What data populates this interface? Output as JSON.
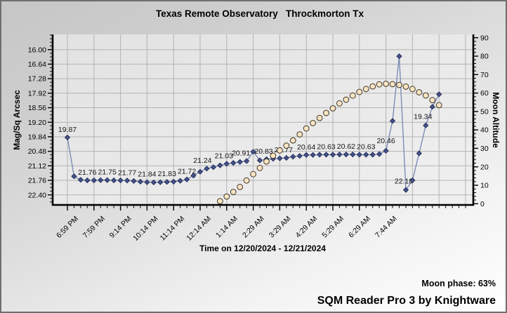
{
  "title": "Texas Remote Observatory   Throckmorton Tx",
  "footer": {
    "moon_phase": "Moon phase: 63%",
    "credit": "SQM Reader Pro 3 by Knightware"
  },
  "colors": {
    "grid": "#b3b3b3",
    "axis": "#000000",
    "plot_bg_start": "#e2e2e2",
    "plot_bg_end": "#f0f0f0",
    "sqm_line": "#7486b5",
    "sqm_marker": "#46548c",
    "sqm_marker_edge": "#232e58",
    "moon_marker": "#f8e4c2",
    "moon_marker_edge": "#403528"
  },
  "chart_data": {
    "type": "line",
    "title": "Texas Remote Observatory   Throckmorton Tx",
    "xlabel": "Time on 12/20/2024 - 12/21/2024",
    "grid": true,
    "legend": "none",
    "y_left": {
      "label": "Mag/Sq Arcsec",
      "inverted": true,
      "min": 16.0,
      "max": 22.4,
      "step": 0.64,
      "ticks": [
        "16.00",
        "16.64",
        "17.28",
        "17.92",
        "18.56",
        "19.20",
        "19.84",
        "20.48",
        "21.12",
        "21.76",
        "22.40"
      ]
    },
    "y_right": {
      "label": "Moon Altitude",
      "min": 0,
      "max": 90,
      "step": 10,
      "ticks": [
        "0",
        "10",
        "20",
        "30",
        "40",
        "50",
        "60",
        "70",
        "80",
        "90"
      ]
    },
    "x_tick_labels": [
      {
        "index": 0,
        "label": "6:59 PM"
      },
      {
        "index": 4,
        "label": "7:59 PM"
      },
      {
        "index": 8,
        "label": "9:14 PM"
      },
      {
        "index": 12,
        "label": "10:14 PM"
      },
      {
        "index": 16,
        "label": "11:14 PM"
      },
      {
        "index": 20,
        "label": "12:14 AM"
      },
      {
        "index": 24,
        "label": "1:14 AM"
      },
      {
        "index": 28,
        "label": "2:29 AM"
      },
      {
        "index": 32,
        "label": "3:29 AM"
      },
      {
        "index": 36,
        "label": "4:29 AM"
      },
      {
        "index": 40,
        "label": "5:29 AM"
      },
      {
        "index": 44,
        "label": "6:29 AM"
      },
      {
        "index": 48,
        "label": "7:44 AM"
      }
    ],
    "series": [
      {
        "id": "sqm",
        "axis": "left",
        "marker": "diamond",
        "line": true,
        "start_index": 0,
        "values": [
          19.87,
          21.58,
          21.74,
          21.76,
          21.76,
          21.75,
          21.75,
          21.76,
          21.76,
          21.77,
          21.79,
          21.82,
          21.84,
          21.85,
          21.84,
          21.83,
          21.82,
          21.78,
          21.72,
          21.55,
          21.38,
          21.24,
          21.18,
          21.1,
          21.03,
          20.99,
          20.95,
          20.91,
          20.5,
          20.88,
          20.83,
          20.81,
          20.79,
          20.77,
          20.72,
          20.68,
          20.64,
          20.64,
          20.63,
          20.63,
          20.63,
          20.62,
          20.62,
          20.62,
          20.63,
          20.63,
          20.63,
          20.6,
          20.46,
          19.14,
          16.29,
          22.18,
          21.76,
          20.57,
          19.34,
          18.52,
          17.97
        ],
        "point_labels": [
          {
            "i": 0,
            "t": "19.87"
          },
          {
            "i": 3,
            "t": "21.76"
          },
          {
            "i": 6,
            "t": "21.75"
          },
          {
            "i": 9,
            "t": "21.77"
          },
          {
            "i": 12,
            "t": "21.84"
          },
          {
            "i": 15,
            "t": "21.83"
          },
          {
            "i": 18,
            "t": "21.72"
          },
          {
            "i": 21,
            "t": "21.24",
            "dx": -6
          },
          {
            "i": 24,
            "t": "21.03",
            "dx": -4
          },
          {
            "i": 27,
            "t": "20.91",
            "dx": -8
          },
          {
            "i": 30,
            "t": "20.83",
            "dx": -4
          },
          {
            "i": 33,
            "t": "20.77",
            "dx": -4
          },
          {
            "i": 36,
            "t": "20.64"
          },
          {
            "i": 39,
            "t": "20.63"
          },
          {
            "i": 42,
            "t": "20.62"
          },
          {
            "i": 45,
            "t": "20.63"
          },
          {
            "i": 48,
            "t": "20.46",
            "dy": -11
          },
          {
            "i": 51,
            "t": "22.18",
            "dx": -3,
            "dy": -9
          },
          {
            "i": 54,
            "t": "19.34",
            "dx": -4,
            "dy": -9
          }
        ]
      },
      {
        "id": "moon_altitude",
        "axis": "right",
        "marker": "circle",
        "line": false,
        "start_index": 23,
        "values": [
          1.4,
          3.9,
          6.4,
          9.1,
          12.6,
          16.0,
          19.4,
          22.9,
          26.0,
          28.9,
          31.5,
          34.3,
          37.6,
          40.8,
          43.7,
          46.5,
          49.2,
          51.7,
          54.4,
          56.4,
          58.6,
          60.6,
          62.2,
          63.6,
          64.7,
          65.0,
          64.8,
          64.4,
          63.5,
          62.2,
          60.4,
          58.7,
          56.2,
          53.4
        ]
      }
    ]
  }
}
